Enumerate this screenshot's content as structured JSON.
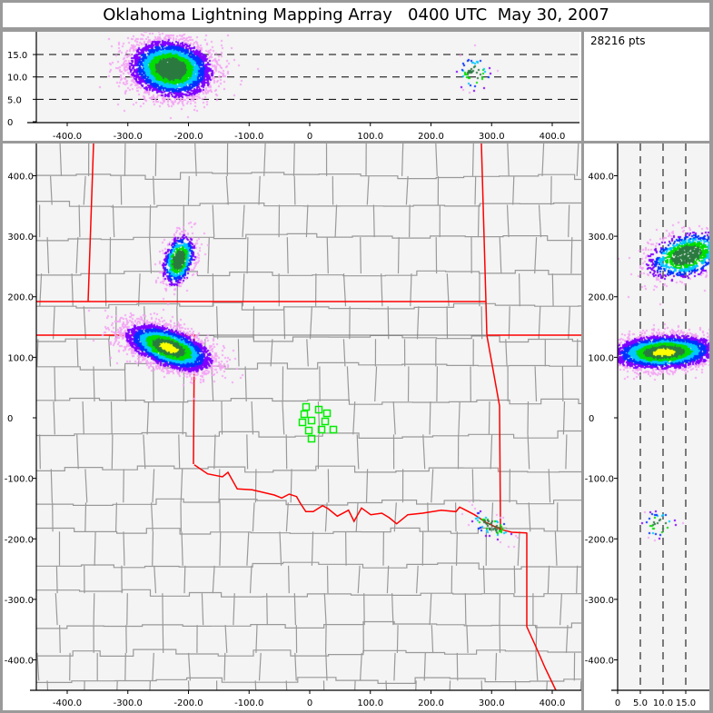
{
  "title": "Oklahoma Lightning Mapping Array   0400 UTC  May 30, 2007",
  "point_count_label": "28216 pts",
  "colors": {
    "panel_border": "#9a9a9a",
    "plot_background": "#f4f4f4",
    "state_border": "#ff0000",
    "county_border": "#999999",
    "station_marker": "#00ee00",
    "density_scale": [
      "#f4a6f4",
      "#8000ff",
      "#0030ff",
      "#00c8ff",
      "#00dd00",
      "#2a7a40",
      "#ffff00"
    ]
  },
  "top_panel": {
    "x_tick_labels": [
      "-400.0",
      "-300.0",
      "-200.0",
      "-100.0",
      "0",
      "100.0",
      "200.0",
      "300.0",
      "400.0"
    ],
    "alt_tick_labels": [
      "0",
      "5.0",
      "10.0",
      "15.0"
    ]
  },
  "main_panel": {
    "x_tick_labels": [
      "-400.0",
      "-300.0",
      "-200.0",
      "-100.0",
      "0",
      "100.0",
      "200.0",
      "300.0",
      "400.0"
    ],
    "y_tick_labels": [
      "400.0",
      "300.0",
      "200.0",
      "100.0",
      "0",
      "-100.0",
      "-200.0",
      "-300.0",
      "-400.0"
    ]
  },
  "side_panel": {
    "alt_tick_labels": [
      "0",
      "5.0",
      "10.0",
      "15.0"
    ],
    "y_tick_labels": [
      "400.0",
      "300.0",
      "200.0",
      "100.0",
      "0",
      "-100.0",
      "-200.0",
      "-300.0",
      "-400.0"
    ]
  }
}
